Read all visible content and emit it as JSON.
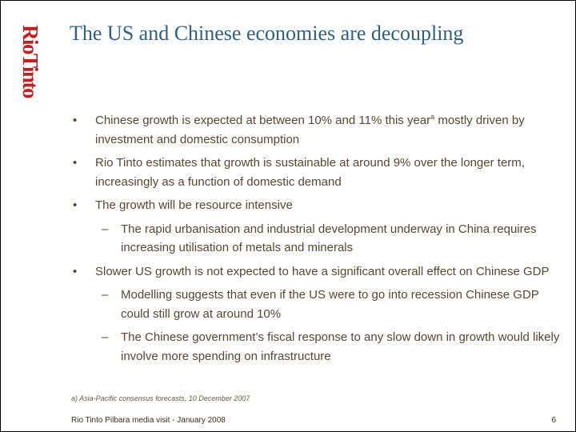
{
  "brand": {
    "logo_text": "RioTinto",
    "logo_color": "#c41e1e"
  },
  "title": "The US and Chinese economies are decoupling",
  "title_color": "#2e5f86",
  "bullets": [
    {
      "marker": "•",
      "text_before": "Chinese growth is expected at between 10% and 11% this year",
      "sup": "a",
      "text_after": " mostly driven by investment and domestic consumption"
    },
    {
      "marker": "•",
      "text": "Rio Tinto estimates that growth is sustainable at around 9% over the longer term, increasingly as a function of domestic demand"
    },
    {
      "marker": "•",
      "text": "The growth will be resource intensive"
    },
    {
      "marker": "–",
      "text": "The rapid urbanisation and industrial development underway in China requires increasing utilisation of metals and minerals"
    },
    {
      "marker": "•",
      "text": "Slower US growth is not expected to have a significant overall effect on Chinese GDP"
    },
    {
      "marker": "–",
      "text": "Modelling suggests that even if the US were to go into recession Chinese GDP could still grow at around 10%"
    },
    {
      "marker": "–",
      "text": "The Chinese government’s fiscal response to any slow down in growth would likely involve more spending on infrastructure"
    }
  ],
  "footnote": "a) Asia-Pacific consensus forecasts, 10 December 2007",
  "footer": "Rio Tinto Pilbara media visit - January 2008",
  "page_number": "6"
}
